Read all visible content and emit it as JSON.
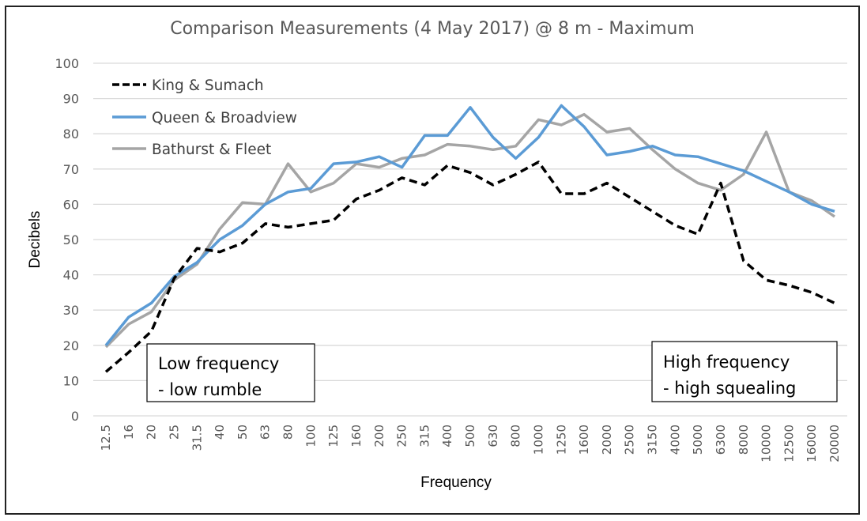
{
  "chart_data": {
    "type": "line",
    "title": "Comparison Measurements (4 May 2017) @ 8 m - Maximum",
    "xlabel": "Frequency",
    "ylabel": "Decibels",
    "ylim": [
      0,
      100
    ],
    "yticks": [
      "0",
      "10",
      "20",
      "30",
      "40",
      "50",
      "60",
      "70",
      "80",
      "90",
      "100"
    ],
    "grid": true,
    "legend_position": "top-left",
    "categories": [
      "12.5",
      "16",
      "20",
      "25",
      "31.5",
      "40",
      "50",
      "63",
      "80",
      "100",
      "125",
      "160",
      "200",
      "250",
      "315",
      "400",
      "500",
      "630",
      "800",
      "1000",
      "1250",
      "1600",
      "2000",
      "2500",
      "3150",
      "4000",
      "5000",
      "6300",
      "8000",
      "10000",
      "12500",
      "16000",
      "20000"
    ],
    "series": [
      {
        "name": "King & Sumach",
        "color": "#000000",
        "dash": "dashed",
        "values": [
          12.5,
          18,
          24,
          39,
          47.5,
          46.5,
          49,
          54.5,
          53.5,
          54.5,
          55.5,
          61.5,
          64,
          67.5,
          65.5,
          71,
          69,
          65.5,
          68.5,
          72,
          63,
          63,
          66,
          62,
          58,
          54,
          51.5,
          66,
          44,
          38.5,
          37,
          35,
          32
        ]
      },
      {
        "name": "Queen & Broadview",
        "color": "#5b9bd5",
        "dash": "solid",
        "values": [
          20,
          28,
          32,
          39.5,
          43.5,
          50,
          54,
          60,
          63.5,
          64.5,
          71.5,
          72,
          73.5,
          70.5,
          79.5,
          79.5,
          87.5,
          79,
          73,
          79,
          88,
          82,
          74,
          75,
          76.5,
          74,
          73.5,
          71.5,
          69.5,
          66.5,
          63.5,
          60,
          58
        ]
      },
      {
        "name": "Bathurst & Fleet",
        "color": "#a5a5a5",
        "dash": "solid",
        "values": [
          19.5,
          26,
          29.5,
          38.5,
          43,
          53,
          60.5,
          60,
          71.5,
          63.5,
          66,
          71.5,
          70.5,
          73,
          74,
          77,
          76.5,
          75.5,
          76.5,
          84,
          82.5,
          85.5,
          80.5,
          81.5,
          75.5,
          70,
          66,
          64,
          68.5,
          80.5,
          63.5,
          61,
          56.5
        ]
      }
    ],
    "annotations": [
      {
        "lines": [
          "Low frequency",
          "- low rumble"
        ],
        "anchor": "bottom-left"
      },
      {
        "lines": [
          "High frequency",
          "- high squealing"
        ],
        "anchor": "bottom-right"
      }
    ]
  }
}
